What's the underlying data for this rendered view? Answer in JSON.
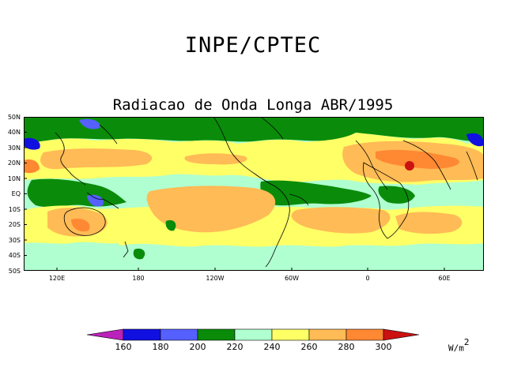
{
  "header": {
    "title": "INPE/CPTEC"
  },
  "map": {
    "title": "Radiacao de Onda Longa ABR/1995",
    "lat_labels": [
      "50N",
      "40N",
      "30N",
      "20N",
      "10N",
      "EQ",
      "10S",
      "20S",
      "30S",
      "40S",
      "50S"
    ],
    "lon_labels": [
      "120E",
      "180",
      "120W",
      "60W",
      "0",
      "60E"
    ]
  },
  "legend": {
    "levels": [
      "160",
      "180",
      "200",
      "220",
      "240",
      "260",
      "280",
      "300"
    ],
    "colors": [
      "#bb22bb",
      "#1010e0",
      "#5560ff",
      "#0a8c0a",
      "#b0ffd0",
      "#ffff66",
      "#ffbb55",
      "#ff8833",
      "#cc1111"
    ],
    "units_base": "W/m",
    "units_exp": "2"
  }
}
